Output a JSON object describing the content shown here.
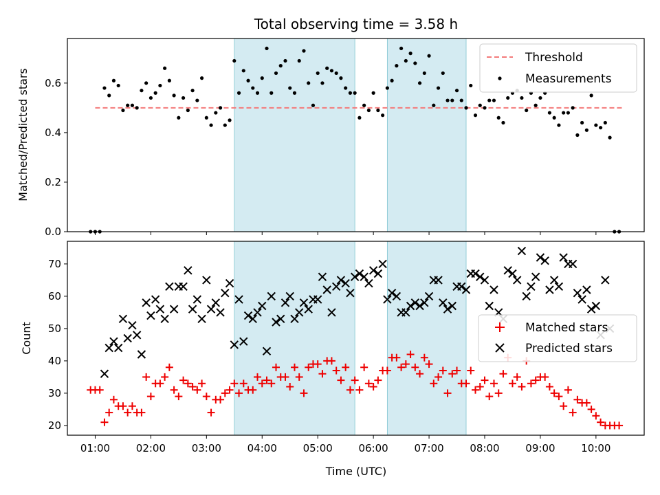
{
  "chart_data": [
    {
      "type": "scatter",
      "title": "Total observing time = 3.58 h",
      "ylabel": "Matched/Predicted stars",
      "xlabel": "",
      "ylim": [
        0.0,
        0.78
      ],
      "yticks": [
        "0.0",
        "0.2",
        "0.4",
        "0.6"
      ],
      "shaded_spans": [
        [
          "03:30",
          "05:40"
        ],
        [
          "06:15",
          "07:40"
        ]
      ],
      "threshold": {
        "name": "Threshold",
        "value": 0.5,
        "x_range": [
          "01:00",
          "10:30"
        ],
        "color": "#f47a7a"
      },
      "legend": {
        "placement": "top-right",
        "entries": [
          "Threshold",
          "Measurements"
        ]
      },
      "series": [
        {
          "name": "Measurements",
          "color": "#000000",
          "marker": "dot",
          "x": [
            "00:55",
            "01:00",
            "01:05",
            "01:10",
            "01:15",
            "01:20",
            "01:25",
            "01:30",
            "01:35",
            "01:40",
            "01:45",
            "01:50",
            "01:55",
            "02:00",
            "02:05",
            "02:10",
            "02:15",
            "02:20",
            "02:25",
            "02:30",
            "02:35",
            "02:40",
            "02:45",
            "02:50",
            "02:55",
            "03:00",
            "03:05",
            "03:10",
            "03:15",
            "03:20",
            "03:25",
            "03:30",
            "03:35",
            "03:40",
            "03:45",
            "03:50",
            "03:55",
            "04:00",
            "04:05",
            "04:10",
            "04:15",
            "04:20",
            "04:25",
            "04:30",
            "04:35",
            "04:40",
            "04:45",
            "04:50",
            "04:55",
            "05:00",
            "05:05",
            "05:10",
            "05:15",
            "05:20",
            "05:25",
            "05:30",
            "05:35",
            "05:40",
            "05:45",
            "05:50",
            "05:55",
            "06:00",
            "06:05",
            "06:10",
            "06:15",
            "06:20",
            "06:25",
            "06:30",
            "06:35",
            "06:40",
            "06:45",
            "06:50",
            "06:55",
            "07:00",
            "07:05",
            "07:10",
            "07:15",
            "07:20",
            "07:25",
            "07:30",
            "07:35",
            "07:40",
            "07:45",
            "07:50",
            "07:55",
            "08:00",
            "08:05",
            "08:10",
            "08:15",
            "08:20",
            "08:25",
            "08:30",
            "08:35",
            "08:40",
            "08:45",
            "08:50",
            "08:55",
            "09:00",
            "09:05",
            "09:10",
            "09:15",
            "09:20",
            "09:25",
            "09:30",
            "09:35",
            "09:40",
            "09:45",
            "09:50",
            "09:55",
            "10:00",
            "10:05",
            "10:10",
            "10:15",
            "10:20",
            "10:25"
          ],
          "y": [
            0.0,
            0.0,
            0.0,
            0.58,
            0.55,
            0.61,
            0.59,
            0.49,
            0.51,
            0.51,
            0.5,
            0.57,
            0.6,
            0.54,
            0.56,
            0.59,
            0.66,
            0.61,
            0.55,
            0.46,
            0.54,
            0.49,
            0.57,
            0.53,
            0.62,
            0.46,
            0.43,
            0.48,
            0.5,
            0.43,
            0.45,
            0.69,
            0.56,
            0.65,
            0.61,
            0.58,
            0.56,
            0.62,
            0.74,
            0.56,
            0.64,
            0.67,
            0.69,
            0.58,
            0.56,
            0.69,
            0.73,
            0.6,
            0.51,
            0.64,
            0.6,
            0.66,
            0.65,
            0.64,
            0.62,
            0.58,
            0.56,
            0.56,
            0.46,
            0.51,
            0.49,
            0.56,
            0.49,
            0.47,
            0.58,
            0.61,
            0.67,
            0.74,
            0.69,
            0.72,
            0.68,
            0.6,
            0.64,
            0.71,
            0.51,
            0.58,
            0.64,
            0.53,
            0.53,
            0.57,
            0.53,
            0.5,
            0.59,
            0.47,
            0.51,
            0.5,
            0.53,
            0.53,
            0.46,
            0.44,
            0.54,
            0.56,
            0.57,
            0.54,
            0.49,
            0.56,
            0.51,
            0.54,
            0.56,
            0.48,
            0.46,
            0.43,
            0.48,
            0.48,
            0.5,
            0.39,
            0.44,
            0.41,
            0.55,
            0.43,
            0.42,
            0.44,
            0.38,
            0.0,
            0.0
          ],
          "y_note_removed": true
        }
      ]
    },
    {
      "type": "scatter",
      "title": "",
      "ylabel": "Count",
      "xlabel": "Time (UTC)",
      "ylim": [
        17,
        77
      ],
      "yticks": [
        "20",
        "30",
        "40",
        "50",
        "60",
        "70"
      ],
      "xticks": [
        "01:00",
        "02:00",
        "03:00",
        "04:00",
        "05:00",
        "06:00",
        "07:00",
        "08:00",
        "09:00",
        "10:00"
      ],
      "shaded_spans": [
        [
          "03:30",
          "05:40"
        ],
        [
          "06:15",
          "07:40"
        ]
      ],
      "legend": {
        "placement": "center-right",
        "entries": [
          "Matched stars",
          "Predicted stars"
        ]
      },
      "series": [
        {
          "name": "Matched stars",
          "color": "#ee0000",
          "marker": "plus",
          "x": [
            "00:55",
            "01:00",
            "01:05",
            "01:10",
            "01:15",
            "01:20",
            "01:25",
            "01:30",
            "01:35",
            "01:40",
            "01:45",
            "01:50",
            "01:55",
            "02:00",
            "02:05",
            "02:10",
            "02:15",
            "02:20",
            "02:25",
            "02:30",
            "02:35",
            "02:40",
            "02:45",
            "02:50",
            "02:55",
            "03:00",
            "03:05",
            "03:10",
            "03:15",
            "03:20",
            "03:25",
            "03:30",
            "03:35",
            "03:40",
            "03:45",
            "03:50",
            "03:55",
            "04:00",
            "04:05",
            "04:10",
            "04:15",
            "04:20",
            "04:25",
            "04:30",
            "04:35",
            "04:40",
            "04:45",
            "04:50",
            "04:55",
            "05:00",
            "05:05",
            "05:10",
            "05:15",
            "05:20",
            "05:25",
            "05:30",
            "05:35",
            "05:40",
            "05:45",
            "05:50",
            "05:55",
            "06:00",
            "06:05",
            "06:10",
            "06:15",
            "06:20",
            "06:25",
            "06:30",
            "06:35",
            "06:40",
            "06:45",
            "06:50",
            "06:55",
            "07:00",
            "07:05",
            "07:10",
            "07:15",
            "07:20",
            "07:25",
            "07:30",
            "07:35",
            "07:40",
            "07:45",
            "07:50",
            "07:55",
            "08:00",
            "08:05",
            "08:10",
            "08:15",
            "08:20",
            "08:25",
            "08:30",
            "08:35",
            "08:40",
            "08:45",
            "08:50",
            "08:55",
            "09:00",
            "09:05",
            "09:10",
            "09:15",
            "09:20",
            "09:25",
            "09:30",
            "09:35",
            "09:40",
            "09:45",
            "09:50",
            "09:55",
            "10:00",
            "10:05",
            "10:10",
            "10:15",
            "10:20",
            "10:25"
          ],
          "y": [
            31,
            31,
            31,
            21,
            24,
            28,
            26,
            26,
            24,
            26,
            24,
            24,
            35,
            29,
            33,
            33,
            35,
            38,
            31,
            29,
            34,
            33,
            32,
            31,
            33,
            29,
            24,
            28,
            28,
            30,
            31,
            33,
            30,
            33,
            31,
            31,
            35,
            33,
            34,
            33,
            38,
            35,
            35,
            32,
            38,
            35,
            30,
            38,
            39,
            39,
            36,
            40,
            40,
            37,
            34,
            38,
            31,
            34,
            31,
            38,
            33,
            32,
            34,
            37,
            37,
            41,
            41,
            38,
            39,
            42,
            38,
            36,
            41,
            39,
            33,
            35,
            37,
            30,
            36,
            37,
            33,
            33,
            37,
            31,
            32,
            34,
            29,
            33,
            30,
            36,
            41,
            33,
            35,
            32,
            40,
            33,
            34,
            35,
            35,
            32,
            30,
            29,
            26,
            31,
            24,
            28,
            27,
            27,
            25,
            23,
            21,
            20,
            20,
            20,
            20
          ]
        },
        {
          "name": "Predicted stars",
          "color": "#000000",
          "marker": "x",
          "x": [
            "01:10",
            "01:15",
            "01:20",
            "01:25",
            "01:30",
            "01:35",
            "01:40",
            "01:45",
            "01:50",
            "01:55",
            "02:00",
            "02:05",
            "02:10",
            "02:15",
            "02:20",
            "02:25",
            "02:30",
            "02:35",
            "02:40",
            "02:45",
            "02:50",
            "02:55",
            "03:00",
            "03:05",
            "03:10",
            "03:15",
            "03:20",
            "03:25",
            "03:30",
            "03:35",
            "03:40",
            "03:45",
            "03:50",
            "03:55",
            "04:00",
            "04:05",
            "04:10",
            "04:15",
            "04:20",
            "04:25",
            "04:30",
            "04:35",
            "04:40",
            "04:45",
            "04:50",
            "04:55",
            "05:00",
            "05:05",
            "05:10",
            "05:15",
            "05:20",
            "05:25",
            "05:30",
            "05:35",
            "05:40",
            "05:45",
            "05:50",
            "05:55",
            "06:00",
            "06:05",
            "06:10",
            "06:15",
            "06:20",
            "06:25",
            "06:30",
            "06:35",
            "06:40",
            "06:45",
            "06:50",
            "06:55",
            "07:00",
            "07:05",
            "07:10",
            "07:15",
            "07:20",
            "07:25",
            "07:30",
            "07:35",
            "07:40",
            "07:45",
            "07:50",
            "07:55",
            "08:00",
            "08:05",
            "08:10",
            "08:15",
            "08:20",
            "08:25",
            "08:30",
            "08:35",
            "08:40",
            "08:45",
            "08:50",
            "08:55",
            "09:00",
            "09:05",
            "09:10",
            "09:15",
            "09:20",
            "09:25",
            "09:30",
            "09:35",
            "09:40",
            "09:45",
            "09:50",
            "09:55",
            "10:00",
            "10:05",
            "10:10",
            "10:15"
          ],
          "y": [
            36,
            44,
            46,
            44,
            53,
            47,
            51,
            48,
            42,
            58,
            54,
            59,
            56,
            53,
            63,
            56,
            63,
            63,
            68,
            56,
            59,
            53,
            65,
            56,
            58,
            55,
            61,
            64,
            45,
            59,
            46,
            54,
            53,
            55,
            57,
            43,
            60,
            52,
            53,
            58,
            60,
            53,
            55,
            58,
            56,
            59,
            59,
            66,
            62,
            55,
            63,
            65,
            64,
            61,
            66,
            67,
            66,
            64,
            68,
            67,
            70,
            59,
            61,
            60,
            55,
            55,
            57,
            58,
            57,
            58,
            60,
            65,
            65,
            58,
            56,
            57,
            63,
            63,
            62,
            67,
            67,
            66,
            65,
            57,
            62,
            55,
            53,
            68,
            67,
            65,
            74,
            60,
            63,
            66,
            72,
            71,
            62,
            65,
            63,
            72,
            70,
            70,
            61,
            59,
            62,
            56,
            57,
            48,
            65,
            50
          ]
        }
      ]
    }
  ]
}
